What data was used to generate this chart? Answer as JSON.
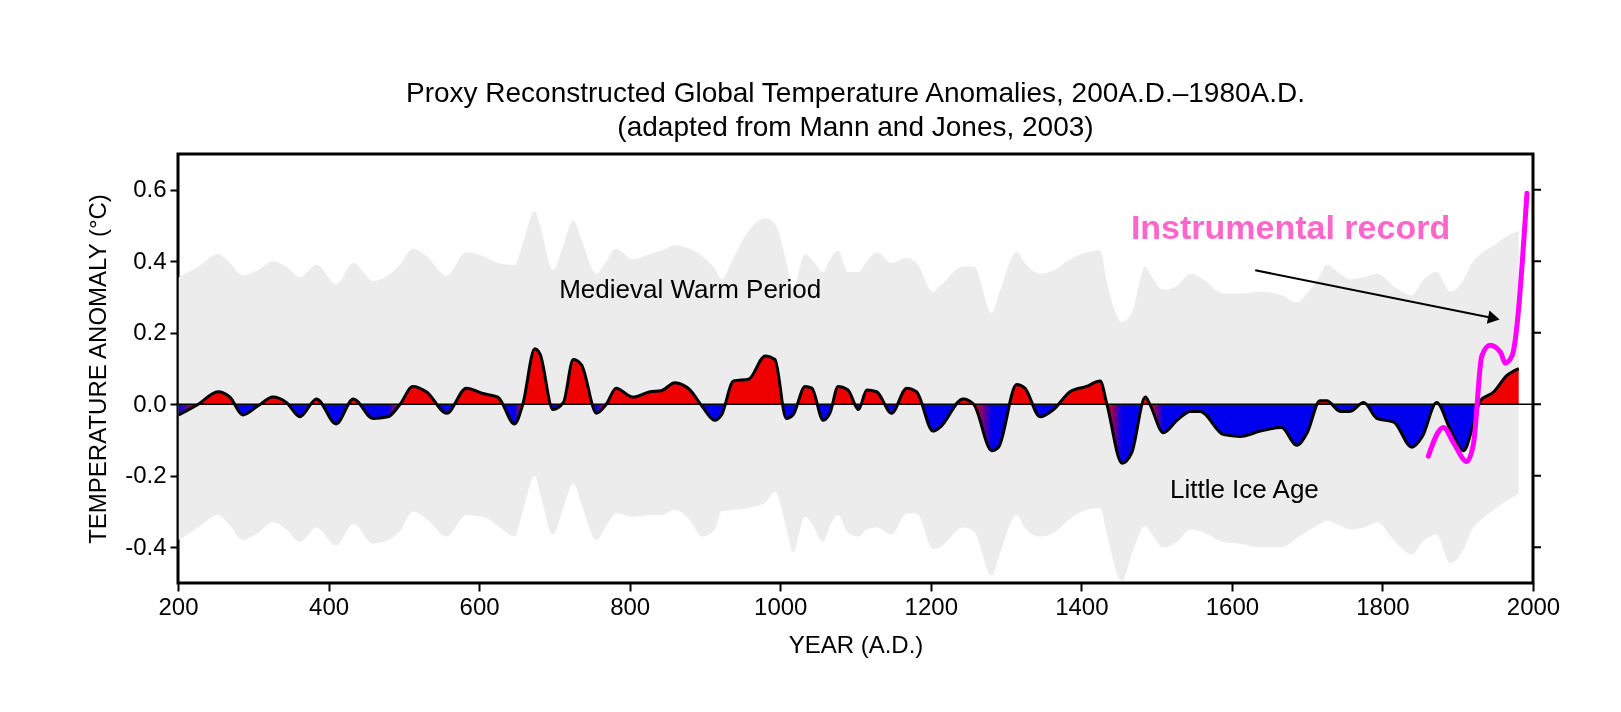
{
  "chart_data": {
    "type": "area",
    "title": "Proxy Reconstructed Global Temperature Anomalies, 200A.D.–1980A.D.",
    "subtitle": "(adapted from Mann and Jones, 2003)",
    "xlabel": "YEAR (A.D.)",
    "ylabel": "TEMPERATURE ANOMALY (°C)",
    "xlim": [
      200,
      2000
    ],
    "xticks": [
      200,
      400,
      600,
      800,
      1000,
      1200,
      1400,
      1600,
      1800,
      2000
    ],
    "ylim": [
      -0.5,
      0.7
    ],
    "yticks": [
      -0.4,
      -0.2,
      {
        "value": 0,
        "label": "0.0"
      },
      0.2,
      0.4,
      0.6
    ],
    "grid": false,
    "marker": "none",
    "ref_lines": [
      {
        "axis": "y",
        "value": 0,
        "color": "#000000"
      }
    ],
    "annotations": [
      "Medieval Warm Period",
      "Little Ice Age"
    ],
    "series": [
      {
        "color": "#000000",
        "x": [
          201,
          227,
          253,
          269,
          286,
          306,
          326,
          344,
          362,
          384,
          410,
          433,
          459,
          479,
          495,
          512,
          530,
          557,
          583,
          605,
          625,
          647,
          658,
          674,
          681,
          698,
          712,
          725,
          736,
          756,
          769,
          782,
          804,
          827,
          842,
          860,
          880,
          896,
          913,
          922,
          938,
          958,
          980,
          993,
          1008,
          1017,
          1033,
          1042,
          1057,
          1066,
          1077,
          1090,
          1104,
          1115,
          1128,
          1148,
          1168,
          1181,
          1203,
          1212,
          1243,
          1257,
          1281,
          1290,
          1314,
          1325,
          1345,
          1363,
          1385,
          1407,
          1425,
          1434,
          1454,
          1467,
          1485,
          1491,
          1509,
          1527,
          1545,
          1558,
          1589,
          1611,
          1638,
          1666,
          1686,
          1700,
          1717,
          1726,
          1744,
          1757,
          1775,
          1793,
          1815,
          1839,
          1853,
          1872,
          1890,
          1908,
          1919,
          1930,
          1948,
          1965,
          1981
        ],
        "values": [
          -0.03,
          0,
          0.035,
          0.02,
          -0.03,
          -0.005,
          0.02,
          0.005,
          -0.035,
          0.015,
          -0.055,
          0.015,
          -0.04,
          -0.035,
          0,
          0.05,
          0.035,
          -0.025,
          0.045,
          0.03,
          0.02,
          -0.055,
          0,
          0.155,
          0.14,
          -0.015,
          0.005,
          0.125,
          0.11,
          -0.025,
          0,
          0.045,
          0.02,
          0.035,
          0.038,
          0.06,
          0.04,
          -0.005,
          -0.045,
          -0.03,
          0.065,
          0.07,
          0.135,
          0.125,
          -0.04,
          -0.03,
          0.05,
          0.045,
          -0.045,
          -0.025,
          0.05,
          0.04,
          -0.015,
          0.04,
          0.035,
          -0.025,
          0.045,
          0.035,
          -0.075,
          -0.065,
          0.015,
          0,
          -0.13,
          -0.12,
          0.055,
          0.045,
          -0.035,
          -0.015,
          0.035,
          0.05,
          0.065,
          0,
          -0.165,
          -0.135,
          0.02,
          0,
          -0.08,
          -0.045,
          -0.02,
          -0.02,
          -0.085,
          -0.09,
          -0.075,
          -0.065,
          -0.115,
          -0.08,
          0.01,
          0.01,
          -0.02,
          -0.02,
          0.005,
          -0.04,
          -0.05,
          -0.12,
          -0.09,
          0.005,
          -0.07,
          -0.13,
          -0.07,
          0.01,
          0.035,
          0.08,
          0.1
        ],
        "colors": [
          "#0000ee",
          "#ee0000",
          "#ee0000",
          "#ee0000",
          "#0000ee",
          "#0000ee",
          "#ee0000",
          "#ee0000",
          "#0000ee",
          "#ee0000",
          "#0000ee",
          "#ee0000",
          "#0000ee",
          "#0000ee",
          "#ee0000",
          "#ee0000",
          "#ee0000",
          "#0000ee",
          "#ee0000",
          "#ee0000",
          "#ee0000",
          "#0000ee",
          "#ee0000",
          "#ee0000",
          "#ee0000",
          "#0000ee",
          "#ee0000",
          "#ee0000",
          "#ee0000",
          "#0000ee",
          "#ee0000",
          "#ee0000",
          "#ee0000",
          "#ee0000",
          "#ee0000",
          "#ee0000",
          "#ee0000",
          "#0000ee",
          "#0000ee",
          "#0000ee",
          "#ee0000",
          "#ee0000",
          "#ee0000",
          "#ee0000",
          "#0000ee",
          "#0000ee",
          "#ee0000",
          "#ee0000",
          "#0000ee",
          "#0000ee",
          "#ee0000",
          "#ee0000",
          "#0000ee",
          "#ee0000",
          "#ee0000",
          "#0000ee",
          "#ee0000",
          "#ee0000",
          "#0000ee",
          "#0000ee",
          "#ee0000",
          "#ee0000",
          "#0000ee",
          "#0000ee",
          "#ee0000",
          "#ee0000",
          "#0000ee",
          "#0000ee",
          "#ee0000",
          "#ee0000",
          "#ee0000",
          "#ee0000",
          "#0000ee",
          "#0000ee",
          "#ee0000",
          "#ee0000",
          "#0000ee",
          "#0000ee",
          "#0000ee",
          "#0000ee",
          "#0000ee",
          "#0000ee",
          "#0000ee",
          "#0000ee",
          "#0000ee",
          "#0000ee",
          "#ee0000",
          "#ee0000",
          "#0000ee",
          "#0000ee",
          "#ee0000",
          "#0000ee",
          "#0000ee",
          "#0000ee",
          "#0000ee",
          "#ee0000",
          "#0000ee",
          "#0000ee",
          "#0000ee",
          "#ee0000",
          "#ee0000",
          "#ee0000",
          "#ee0000"
        ],
        "upper": [
          0.355,
          0.385,
          0.42,
          0.395,
          0.36,
          0.375,
          0.4,
          0.385,
          0.355,
          0.39,
          0.335,
          0.395,
          0.345,
          0.36,
          0.39,
          0.435,
          0.415,
          0.36,
          0.425,
          0.415,
          0.395,
          0.39,
          0.45,
          0.54,
          0.5,
          0.375,
          0.445,
          0.515,
          0.46,
          0.365,
          0.4,
          0.435,
          0.405,
          0.42,
          0.43,
          0.445,
          0.435,
          0.415,
          0.38,
          0.35,
          0.41,
          0.485,
          0.52,
          0.505,
          0.4,
          0.325,
          0.42,
          0.405,
          0.37,
          0.405,
          0.43,
          0.37,
          0.37,
          0.4,
          0.425,
          0.395,
          0.41,
          0.395,
          0.315,
          0.33,
          0.385,
          0.385,
          0.255,
          0.305,
          0.425,
          0.395,
          0.365,
          0.375,
          0.405,
          0.425,
          0.43,
          0.34,
          0.23,
          0.255,
          0.385,
          0.365,
          0.32,
          0.33,
          0.365,
          0.355,
          0.31,
          0.31,
          0.315,
          0.305,
          0.285,
          0.31,
          0.36,
          0.39,
          0.365,
          0.35,
          0.355,
          0.365,
          0.33,
          0.305,
          0.345,
          0.37,
          0.315,
          0.35,
          0.395,
          0.42,
          0.445,
          0.47,
          0.485
        ],
        "lower": [
          -0.38,
          -0.345,
          -0.31,
          -0.34,
          -0.38,
          -0.36,
          -0.33,
          -0.35,
          -0.385,
          -0.345,
          -0.395,
          -0.335,
          -0.39,
          -0.38,
          -0.355,
          -0.3,
          -0.32,
          -0.37,
          -0.31,
          -0.315,
          -0.34,
          -0.37,
          -0.3,
          -0.2,
          -0.25,
          -0.365,
          -0.29,
          -0.22,
          -0.28,
          -0.38,
          -0.34,
          -0.305,
          -0.315,
          -0.31,
          -0.31,
          -0.295,
          -0.325,
          -0.37,
          -0.35,
          -0.3,
          -0.295,
          -0.29,
          -0.275,
          -0.245,
          -0.345,
          -0.415,
          -0.315,
          -0.335,
          -0.385,
          -0.34,
          -0.31,
          -0.36,
          -0.37,
          -0.35,
          -0.345,
          -0.365,
          -0.305,
          -0.305,
          -0.405,
          -0.4,
          -0.345,
          -0.355,
          -0.48,
          -0.43,
          -0.31,
          -0.345,
          -0.37,
          -0.36,
          -0.32,
          -0.295,
          -0.29,
          -0.365,
          -0.495,
          -0.42,
          -0.34,
          -0.355,
          -0.4,
          -0.385,
          -0.35,
          -0.355,
          -0.385,
          -0.39,
          -0.4,
          -0.4,
          -0.375,
          -0.355,
          -0.335,
          -0.325,
          -0.34,
          -0.35,
          -0.345,
          -0.33,
          -0.38,
          -0.42,
          -0.385,
          -0.365,
          -0.445,
          -0.405,
          -0.35,
          -0.325,
          -0.295,
          -0.27,
          -0.25
        ]
      },
      {
        "type": "line",
        "name": "Instrumental record",
        "color": "#ff00ff",
        "x": [
          1861,
          1881,
          1895,
          1912,
          1921,
          1932,
          1943,
          1957,
          1963,
          1972,
          1992
        ],
        "values": [
          -0.145,
          -0.065,
          -0.11,
          -0.16,
          -0.11,
          0.135,
          0.165,
          0.145,
          0.115,
          0.135,
          0.59
        ]
      }
    ]
  }
}
